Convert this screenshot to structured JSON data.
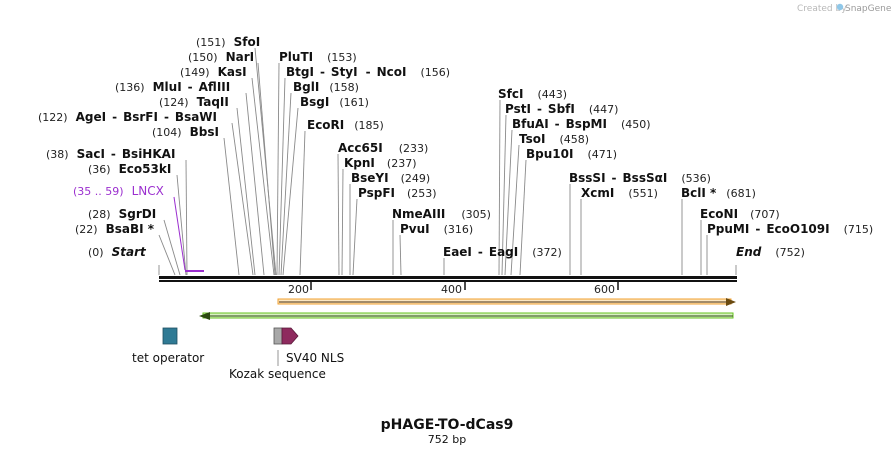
{
  "brand": {
    "prefix": "Created by",
    "name": "SnapGene"
  },
  "title": "pHAGE-TO-dCas9",
  "length_label": "752 bp",
  "start_label": {
    "pos": "(0)",
    "name": "Start"
  },
  "end_label": {
    "name": "End",
    "pos": "(752)"
  },
  "ruler": [
    "200",
    "400",
    "600"
  ],
  "features": {
    "tet_operator": "tet operator",
    "kozak": "Kozak sequence",
    "sv40_nls": "SV40 NLS"
  },
  "primer": {
    "range": "(35 .. 59)",
    "name": "LNCX",
    "color": "#9b2fcf"
  },
  "sites": [
    {
      "pos": "(151)",
      "names": [
        "SfoI"
      ]
    },
    {
      "pos": "(150)",
      "names": [
        "NarI"
      ]
    },
    {
      "pos": "(149)",
      "names": [
        "KasI"
      ]
    },
    {
      "pos": "(136)",
      "names": [
        "MluI",
        "AflIII"
      ]
    },
    {
      "pos": "(124)",
      "names": [
        "TaqII"
      ]
    },
    {
      "pos": "(122)",
      "names": [
        "AgeI",
        "BsrFI",
        "BsaWI"
      ]
    },
    {
      "pos": "(104)",
      "names": [
        "BbsI"
      ]
    },
    {
      "pos": "(38)",
      "names": [
        "SacI",
        "BsiHKAI"
      ]
    },
    {
      "pos": "(36)",
      "names": [
        "Eco53kI"
      ]
    },
    {
      "pos": "(28)",
      "names": [
        "SgrDI"
      ]
    },
    {
      "pos": "(22)",
      "names": [
        "BsaBI *"
      ]
    },
    {
      "pos": "(153)",
      "names": [
        "PluTI"
      ]
    },
    {
      "pos": "(156)",
      "names": [
        "BtgI",
        "StyI",
        "NcoI"
      ]
    },
    {
      "pos": "(158)",
      "names": [
        "BglI"
      ]
    },
    {
      "pos": "(161)",
      "names": [
        "BsgI"
      ]
    },
    {
      "pos": "(185)",
      "names": [
        "EcoRI"
      ]
    },
    {
      "pos": "(233)",
      "names": [
        "Acc65I"
      ]
    },
    {
      "pos": "(237)",
      "names": [
        "KpnI"
      ]
    },
    {
      "pos": "(249)",
      "names": [
        "BseYI"
      ]
    },
    {
      "pos": "(253)",
      "names": [
        "PspFI"
      ]
    },
    {
      "pos": "(305)",
      "names": [
        "NmeAIII"
      ]
    },
    {
      "pos": "(316)",
      "names": [
        "PvuI"
      ]
    },
    {
      "pos": "(372)",
      "names": [
        "EaeI",
        "EagI"
      ]
    },
    {
      "pos": "(443)",
      "names": [
        "SfcI"
      ]
    },
    {
      "pos": "(447)",
      "names": [
        "PstI",
        "SbfI"
      ]
    },
    {
      "pos": "(450)",
      "names": [
        "BfuAI",
        "BspMI"
      ]
    },
    {
      "pos": "(458)",
      "names": [
        "TsoI"
      ]
    },
    {
      "pos": "(471)",
      "names": [
        "Bpu10I"
      ]
    },
    {
      "pos": "(536)",
      "names": [
        "BssSI",
        "BssSαI"
      ]
    },
    {
      "pos": "(551)",
      "names": [
        "XcmI"
      ]
    },
    {
      "pos": "(681)",
      "names": [
        "BclI *"
      ]
    },
    {
      "pos": "(707)",
      "names": [
        "EcoNI"
      ]
    },
    {
      "pos": "(715)",
      "names": [
        "PpuMI",
        "EcoO109I"
      ]
    }
  ],
  "colors": {
    "primer": "#9b2fcf",
    "orange_track": "#f0a030",
    "green_track": "#66c31f",
    "tet_operator": "#2f7a94",
    "kozak": "#a8a8a8",
    "sv40_nls": "#8e2a5e"
  }
}
